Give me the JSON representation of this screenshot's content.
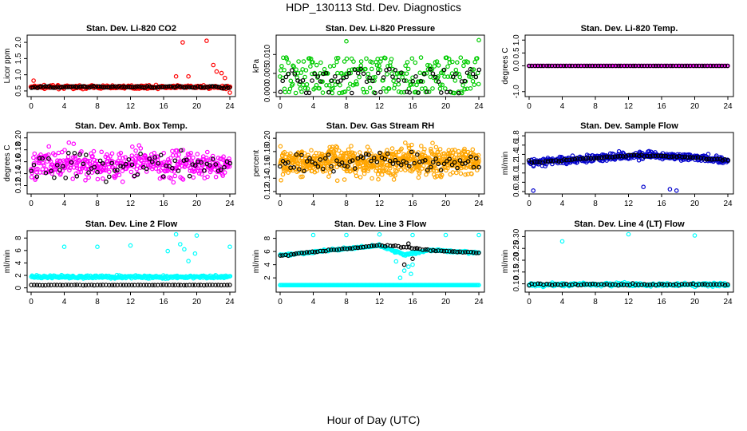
{
  "title": "HDP_130113  Std. Dev. Diagnostics",
  "xlabel": "Hour of Day (UTC)",
  "chart_data": [
    {
      "type": "scatter",
      "title": "Stan. Dev. Li-820 CO2",
      "ylabel": "Licor ppm",
      "xlim": [
        0,
        24
      ],
      "ylim": [
        0.4,
        2.15
      ],
      "xticks": [
        "0",
        "4",
        "8",
        "12",
        "16",
        "20",
        "24"
      ],
      "yticks": [
        {
          "v": 0.5,
          "l": "0.5"
        },
        {
          "v": 1.0,
          "l": "1.0"
        },
        {
          "v": 1.5,
          "l": "1.5"
        },
        {
          "v": 2.0,
          "l": "2.0"
        }
      ],
      "colors": {
        "primary": "#ff0000",
        "secondary": "#000000"
      },
      "series": [
        {
          "name": "all",
          "color": "#ff0000",
          "n": 300,
          "base": 0.62,
          "spread": 0.08,
          "outliers": [
            [
              18.3,
              2.0
            ],
            [
              21.2,
              2.05
            ],
            [
              22.0,
              1.3
            ],
            [
              22.4,
              1.1
            ],
            [
              23.0,
              1.05
            ],
            [
              23.4,
              0.9
            ],
            [
              0.3,
              0.82
            ],
            [
              24,
              0.45
            ],
            [
              19,
              0.95
            ],
            [
              17.5,
              0.95
            ]
          ]
        },
        {
          "name": "hourly",
          "color": "#000000",
          "n": 100,
          "base": 0.62,
          "spread": 0.05
        }
      ]
    },
    {
      "type": "scatter",
      "title": "Stan. Dev. Li-820 Pressure",
      "ylabel": "kPa",
      "xlim": [
        0,
        24
      ],
      "ylim": [
        -0.0005,
        0.0145
      ],
      "xticks": [
        "0",
        "4",
        "8",
        "12",
        "16",
        "20",
        "24"
      ],
      "yticks": [
        {
          "v": 0.0,
          "l": "0.000"
        },
        {
          "v": 0.005,
          "l": "0.005"
        },
        {
          "v": 0.01,
          "l": "0.010"
        }
      ],
      "colors": {
        "primary": "#00cc00",
        "secondary": "#000000"
      },
      "series": [
        {
          "name": "all",
          "color": "#00cc00",
          "n": 260,
          "levels": [
            0.0,
            0.001,
            0.002,
            0.003,
            0.004,
            0.005,
            0.006,
            0.007,
            0.008,
            0.009
          ],
          "outliers": [
            [
              8.0,
              0.0135
            ],
            [
              24,
              0.0138
            ]
          ]
        },
        {
          "name": "hourly",
          "color": "#000000",
          "n": 70,
          "levels": [
            0.0,
            0.003,
            0.004,
            0.005,
            0.006
          ]
        }
      ]
    },
    {
      "type": "scatter",
      "title": "Stan. Dev. Li-820 Temp.",
      "ylabel": "degrees C",
      "xlim": [
        0,
        24
      ],
      "ylim": [
        -1.1,
        1.1
      ],
      "xticks": [
        "0",
        "4",
        "8",
        "12",
        "16",
        "20",
        "24"
      ],
      "yticks": [
        {
          "v": -1.0,
          "l": "-1.0"
        },
        {
          "v": 0.0,
          "l": "0.0"
        },
        {
          "v": 0.5,
          "l": "0.5"
        },
        {
          "v": 1.0,
          "l": "1.0"
        }
      ],
      "colors": {
        "primary": "#ff00ff",
        "secondary": "#000000"
      },
      "series": [
        {
          "name": "all",
          "color": "#ff00ff",
          "n": 150,
          "base": 0.0,
          "spread": 0.0
        },
        {
          "name": "hourly",
          "color": "#000000",
          "n": 70,
          "base": 0.0,
          "spread": 0.0
        }
      ]
    },
    {
      "type": "scatter",
      "title": "Stan. Dev. Amb. Box Temp.",
      "ylabel": "degrees C",
      "xlim": [
        0,
        24
      ],
      "ylim": [
        0.11,
        0.205
      ],
      "xticks": [
        "0",
        "4",
        "8",
        "12",
        "16",
        "20",
        "24"
      ],
      "yticks": [
        {
          "v": 0.12,
          "l": "0.12"
        },
        {
          "v": 0.14,
          "l": "0.14"
        },
        {
          "v": 0.16,
          "l": "0.16"
        },
        {
          "v": 0.18,
          "l": "0.18"
        },
        {
          "v": 0.2,
          "l": "0.20"
        }
      ],
      "colors": {
        "primary": "#ff00ff",
        "secondary": "#000000"
      },
      "series": [
        {
          "name": "all",
          "color": "#ff00ff",
          "n": 420,
          "base": 0.155,
          "spread": 0.04
        },
        {
          "name": "hourly",
          "color": "#000000",
          "n": 70,
          "base": 0.155,
          "spread": 0.04
        }
      ]
    },
    {
      "type": "scatter",
      "title": "Stan. Dev. Gas Stream RH",
      "ylabel": "percent",
      "xlim": [
        0,
        24
      ],
      "ylim": [
        0.12,
        0.205
      ],
      "xticks": [
        "0",
        "4",
        "8",
        "12",
        "16",
        "20",
        "24"
      ],
      "yticks": [
        {
          "v": 0.12,
          "l": "0.12"
        },
        {
          "v": 0.14,
          "l": "0.14"
        },
        {
          "v": 0.16,
          "l": "0.16"
        },
        {
          "v": 0.18,
          "l": "0.18"
        },
        {
          "v": 0.2,
          "l": "0.20"
        }
      ],
      "colors": {
        "primary": "#ffa500",
        "secondary": "#000000"
      },
      "series": [
        {
          "name": "all",
          "color": "#ffa500",
          "n": 700,
          "base": 0.165,
          "spread": 0.035
        },
        {
          "name": "hourly",
          "color": "#000000",
          "n": 75,
          "base": 0.165,
          "spread": 0.025
        }
      ]
    },
    {
      "type": "scatter",
      "title": "Stan. Dev. Sample Flow",
      "ylabel": "ml/min",
      "xlim": [
        0,
        24
      ],
      "ylim": [
        0.6,
        1.82
      ],
      "xticks": [
        "0",
        "4",
        "8",
        "12",
        "16",
        "20",
        "24"
      ],
      "yticks": [
        {
          "v": 0.6,
          "l": "0.6"
        },
        {
          "v": 0.8,
          "l": "0.8"
        },
        {
          "v": 1.0,
          "l": "1.0"
        },
        {
          "v": 1.2,
          "l": "1.2"
        },
        {
          "v": 1.4,
          "l": "1.4"
        },
        {
          "v": 1.6,
          "l": "1.6"
        },
        {
          "v": 1.8,
          "l": "1.8"
        }
      ],
      "colors": {
        "primary": "#0000cc",
        "secondary": "#000000"
      },
      "series": [
        {
          "name": "all",
          "color": "#0000cc",
          "n": 380,
          "trend": [
            [
              0,
              1.22
            ],
            [
              6,
              1.3
            ],
            [
              12,
              1.38
            ],
            [
              18,
              1.35
            ],
            [
              24,
              1.28
            ]
          ],
          "spread": 0.14,
          "outliers": [
            [
              0.5,
              0.62
            ],
            [
              17,
              0.65
            ],
            [
              13.8,
              0.7
            ],
            [
              17.8,
              0.62
            ]
          ]
        },
        {
          "name": "hourly",
          "color": "#000000",
          "n": 75,
          "trend": [
            [
              0,
              1.22
            ],
            [
              6,
              1.3
            ],
            [
              12,
              1.38
            ],
            [
              18,
              1.35
            ],
            [
              24,
              1.28
            ]
          ],
          "spread": 0.03
        }
      ]
    },
    {
      "type": "scatter",
      "title": "Stan. Dev. Line 2 Flow",
      "ylabel": "ml/min",
      "xlim": [
        0,
        24
      ],
      "ylim": [
        -0.3,
        8.8
      ],
      "xticks": [
        "0",
        "4",
        "8",
        "12",
        "16",
        "20",
        "24"
      ],
      "yticks": [
        {
          "v": 0,
          "l": "0"
        },
        {
          "v": 2,
          "l": "2"
        },
        {
          "v": 4,
          "l": "4"
        },
        {
          "v": 6,
          "l": "6"
        },
        {
          "v": 8,
          "l": "8"
        }
      ],
      "colors": {
        "primary": "#00ffff",
        "secondary": "#000000"
      },
      "series": [
        {
          "name": "all",
          "color": "#00ffff",
          "n": 320,
          "base": 1.75,
          "spread": 0.4,
          "outliers": [
            [
              4.0,
              6.6
            ],
            [
              8.0,
              6.6
            ],
            [
              12.0,
              6.8
            ],
            [
              17.5,
              8.6
            ],
            [
              18.0,
              7.0
            ],
            [
              18.5,
              6.2
            ],
            [
              19.0,
              4.3
            ],
            [
              19.8,
              5.5
            ],
            [
              24,
              6.6
            ],
            [
              20.0,
              8.4
            ],
            [
              16.5,
              5.9
            ]
          ]
        },
        {
          "name": "hourly",
          "color": "#000000",
          "n": 70,
          "base": 0.45,
          "spread": 0.05
        }
      ]
    },
    {
      "type": "scatter",
      "title": "Stan. Dev. Line 3 Flow",
      "ylabel": "ml/min",
      "xlim": [
        0,
        24
      ],
      "ylim": [
        0.2,
        8.8
      ],
      "xticks": [
        "0",
        "4",
        "8",
        "12",
        "16",
        "20",
        "24"
      ],
      "yticks": [
        {
          "v": 2,
          "l": "2"
        },
        {
          "v": 4,
          "l": "4"
        },
        {
          "v": 6,
          "l": "6"
        },
        {
          "v": 8,
          "l": "8"
        }
      ],
      "colors": {
        "primary": "#00ffff",
        "secondary": "#000000"
      },
      "series": [
        {
          "name": "all",
          "color": "#00ffff",
          "n": 300,
          "trend": [
            [
              0,
              5.4
            ],
            [
              6,
              6.2
            ],
            [
              12,
              6.9
            ],
            [
              15,
              5.5
            ],
            [
              18,
              6.2
            ],
            [
              24,
              5.8
            ]
          ],
          "spread": 0.25,
          "baseline": 0.9,
          "outliers": [
            [
              4.0,
              8.5
            ],
            [
              8.0,
              8.5
            ],
            [
              12.0,
              8.6
            ],
            [
              16.0,
              8.5
            ],
            [
              20.0,
              8.5
            ],
            [
              24,
              8.5
            ],
            [
              14.5,
              2.0
            ],
            [
              15.0,
              3.1
            ],
            [
              15.5,
              3.7
            ],
            [
              16.0,
              4.0
            ],
            [
              14.0,
              4.5
            ],
            [
              15.8,
              2.6
            ]
          ]
        },
        {
          "name": "hourly",
          "color": "#000000",
          "n": 75,
          "trend": [
            [
              0,
              5.4
            ],
            [
              6,
              6.2
            ],
            [
              12,
              6.9
            ],
            [
              15,
              6.7
            ],
            [
              18,
              6.2
            ],
            [
              24,
              5.8
            ]
          ],
          "spread": 0.2,
          "outliers": [
            [
              15.0,
              4.0
            ],
            [
              16.0,
              4.9
            ],
            [
              15.5,
              7.2
            ],
            [
              16.5,
              6.5
            ]
          ]
        }
      ]
    },
    {
      "type": "scatter",
      "title": "Stan. Dev. Line 4 (LT) Flow",
      "ylabel": "ml/min",
      "xlim": [
        0,
        24
      ],
      "ylim": [
        0.075,
        0.315
      ],
      "xticks": [
        "0",
        "4",
        "8",
        "12",
        "16",
        "20",
        "24"
      ],
      "yticks": [
        {
          "v": 0.1,
          "l": "0.10"
        },
        {
          "v": 0.15,
          "l": "0.15"
        },
        {
          "v": 0.2,
          "l": "0.20"
        },
        {
          "v": 0.25,
          "l": "0.25"
        },
        {
          "v": 0.3,
          "l": "0.30"
        }
      ],
      "colors": {
        "primary": "#00ffff",
        "secondary": "#000000"
      },
      "series": [
        {
          "name": "all",
          "color": "#00ffff",
          "n": 300,
          "base": 0.097,
          "spread": 0.012,
          "outliers": [
            [
              4.0,
              0.28
            ],
            [
              12.0,
              0.31
            ],
            [
              20.0,
              0.305
            ]
          ]
        },
        {
          "name": "hourly",
          "color": "#000000",
          "n": 70,
          "base": 0.097,
          "spread": 0.006
        }
      ]
    }
  ]
}
